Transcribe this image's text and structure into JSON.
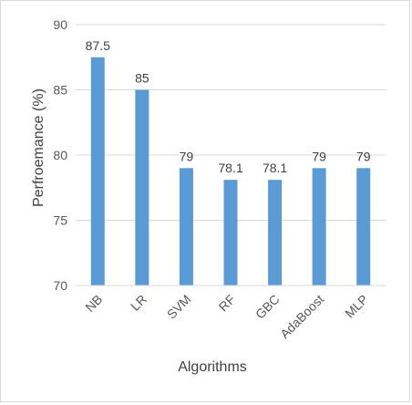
{
  "chart_data": {
    "type": "bar",
    "title": "",
    "xlabel": "Algorithms",
    "ylabel": "Perfroemance (%)",
    "categories": [
      "NB",
      "LR",
      "SVM",
      "RF",
      "GBC",
      "AdaBoost",
      "MLP"
    ],
    "values": [
      87.5,
      85,
      79,
      78.1,
      78.1,
      79,
      79
    ],
    "data_labels": [
      "87.5",
      "85",
      "79",
      "78.1",
      "78.1",
      "79",
      "79"
    ],
    "yticks": [
      "70",
      "75",
      "80",
      "85",
      "90"
    ],
    "ylim": [
      70,
      90
    ],
    "grid": true,
    "legend": "none",
    "bar_color": "#5b9bd5",
    "grid_color": "#d9d9d9"
  }
}
